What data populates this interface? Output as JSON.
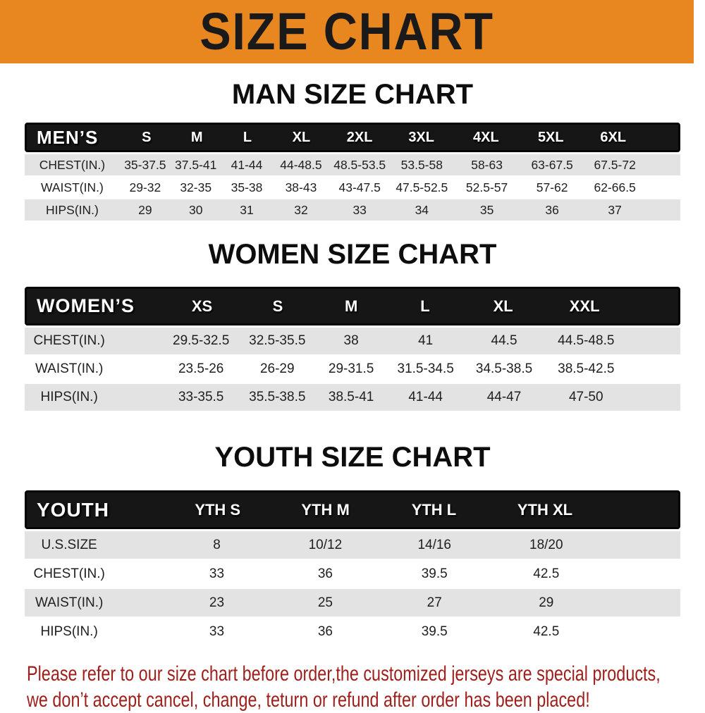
{
  "banner": {
    "title": "SIZE CHART",
    "background_color": "#E8861F",
    "title_color": "#1A1A1A"
  },
  "tables": {
    "men": {
      "heading": "MAN SIZE CHART",
      "corner_label": "MEN’S",
      "sizes": [
        "S",
        "M",
        "L",
        "XL",
        "2XL",
        "3XL",
        "4XL",
        "5XL",
        "6XL"
      ],
      "rows": [
        {
          "label": "CHEST(IN.)",
          "values": [
            "35-37.5",
            "37.5-41",
            "41-44",
            "44-48.5",
            "48.5-53.5",
            "53.5-58",
            "58-63",
            "63-67.5",
            "67.5-72"
          ]
        },
        {
          "label": "WAIST(IN.)",
          "values": [
            "29-32",
            "32-35",
            "35-38",
            "38-43",
            "43-47.5",
            "47.5-52.5",
            "52.5-57",
            "57-62",
            "62-66.5"
          ]
        },
        {
          "label": "HIPS(IN.)",
          "values": [
            "29",
            "30",
            "31",
            "32",
            "33",
            "34",
            "35",
            "36",
            "37"
          ]
        }
      ]
    },
    "women": {
      "heading": "WOMEN SIZE CHART",
      "corner_label": "WOMEN’S",
      "sizes": [
        "XS",
        "S",
        "M",
        "L",
        "XL",
        "XXL"
      ],
      "rows": [
        {
          "label": "CHEST(IN.)",
          "values": [
            "29.5-32.5",
            "32.5-35.5",
            "38",
            "41",
            "44.5",
            "44.5-48.5"
          ]
        },
        {
          "label": "WAIST(IN.)",
          "values": [
            "23.5-26",
            "26-29",
            "29-31.5",
            "31.5-34.5",
            "34.5-38.5",
            "38.5-42.5"
          ]
        },
        {
          "label": "HIPS(IN.)",
          "values": [
            "33-35.5",
            "35.5-38.5",
            "38.5-41",
            "41-44",
            "44-47",
            "47-50"
          ]
        }
      ]
    },
    "youth": {
      "heading": "YOUTH SIZE CHART",
      "corner_label": "YOUTH",
      "sizes": [
        "YTH S",
        "YTH M",
        "YTH L",
        "YTH XL"
      ],
      "rows": [
        {
          "label": "U.S.SIZE",
          "values": [
            "8",
            "10/12",
            "14/16",
            "18/20"
          ]
        },
        {
          "label": "CHEST(IN.)",
          "values": [
            "33",
            "36",
            "39.5",
            "42.5"
          ]
        },
        {
          "label": "WAIST(IN.)",
          "values": [
            "23",
            "25",
            "27",
            "29"
          ]
        },
        {
          "label": "HIPS(IN.)",
          "values": [
            "33",
            "36",
            "39.5",
            "42.5"
          ]
        }
      ]
    }
  },
  "footer": {
    "line1": "Please refer to our size chart before order,the customized jerseys are special products,",
    "line2": "we don’t accept cancel, change, teturn or refund after order has been placed!",
    "text_color": "#9E1F1A"
  },
  "colors": {
    "header_bar": "#161616",
    "row_shaded": "#E3E3E3",
    "row_plain": "#FFFFFF",
    "table_text": "#1F1F1F"
  }
}
